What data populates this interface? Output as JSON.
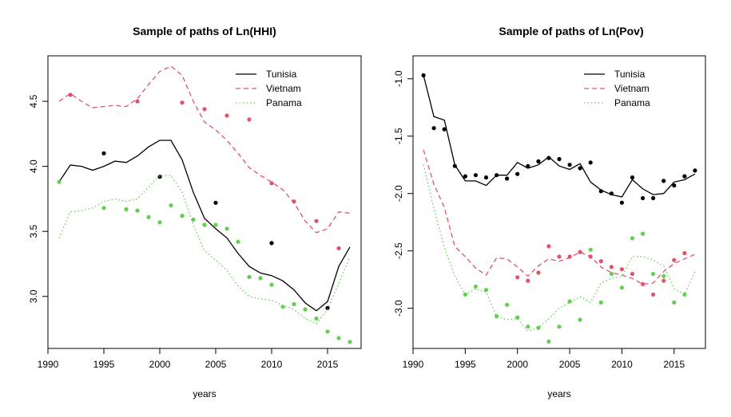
{
  "chart_data": [
    {
      "id": "hhi",
      "type": "line",
      "title": "Sample of paths of Ln(HHI)",
      "xlabel": "years",
      "ylabel": "",
      "xlim": [
        1990,
        2018
      ],
      "ylim": [
        2.6,
        4.85
      ],
      "xticks": [
        1990,
        1995,
        2000,
        2005,
        2010,
        2015
      ],
      "yticks": [
        3.0,
        3.5,
        4.0,
        4.5
      ],
      "ytick_labels": [
        "3.0",
        "3.5",
        "4.0",
        "4.5"
      ],
      "grid": false,
      "legend_position": "top-right",
      "series": [
        {
          "name": "Tunisia",
          "color": "#000000",
          "dash": "solid",
          "x": [
            1991,
            1992,
            1993,
            1994,
            1995,
            1996,
            1997,
            1998,
            1999,
            2000,
            2001,
            2002,
            2003,
            2004,
            2005,
            2006,
            2007,
            2008,
            2009,
            2010,
            2011,
            2012,
            2013,
            2014,
            2015,
            2016,
            2017
          ],
          "y": [
            3.88,
            4.01,
            4.0,
            3.97,
            4.0,
            4.04,
            4.03,
            4.08,
            4.15,
            4.2,
            4.2,
            4.05,
            3.8,
            3.6,
            3.52,
            3.45,
            3.33,
            3.23,
            3.18,
            3.16,
            3.12,
            3.05,
            2.95,
            2.89,
            2.96,
            3.23,
            3.38
          ],
          "points_x": [
            1995,
            2000,
            2005,
            2010,
            2015
          ],
          "points_y": [
            4.1,
            3.92,
            3.72,
            3.41,
            2.91
          ]
        },
        {
          "name": "Vietnam",
          "color": "#DF536B",
          "dash": "dashed",
          "x": [
            1991,
            1992,
            1993,
            1994,
            1995,
            1996,
            1997,
            1998,
            1999,
            2000,
            2001,
            2002,
            2003,
            2004,
            2005,
            2006,
            2007,
            2008,
            2009,
            2010,
            2011,
            2012,
            2013,
            2014,
            2015,
            2016,
            2017
          ],
          "y": [
            4.5,
            4.56,
            4.5,
            4.45,
            4.46,
            4.47,
            4.46,
            4.52,
            4.63,
            4.73,
            4.77,
            4.7,
            4.5,
            4.34,
            4.28,
            4.2,
            4.1,
            3.99,
            3.93,
            3.88,
            3.82,
            3.72,
            3.58,
            3.49,
            3.52,
            3.65,
            3.64
          ],
          "points_x": [
            1992,
            1998,
            2002,
            2004,
            2006,
            2008,
            2010,
            2012,
            2014,
            2016
          ],
          "points_y": [
            4.55,
            4.5,
            4.49,
            4.44,
            4.39,
            4.36,
            3.87,
            3.73,
            3.58,
            3.37
          ]
        },
        {
          "name": "Panama",
          "color": "#61D04F",
          "dash": "dotted",
          "x": [
            1991,
            1992,
            1993,
            1994,
            1995,
            1996,
            1997,
            1998,
            1999,
            2000,
            2001,
            2002,
            2003,
            2004,
            2005,
            2006,
            2007,
            2008,
            2009,
            2010,
            2011,
            2012,
            2013,
            2014,
            2015,
            2016,
            2017
          ],
          "y": [
            3.45,
            3.65,
            3.66,
            3.68,
            3.73,
            3.75,
            3.73,
            3.75,
            3.84,
            3.93,
            3.93,
            3.8,
            3.55,
            3.35,
            3.28,
            3.2,
            3.08,
            3.0,
            2.98,
            2.97,
            2.93,
            2.9,
            2.83,
            2.79,
            2.9,
            3.1,
            3.3
          ],
          "points_x": [
            1991,
            1995,
            1997,
            1998,
            1999,
            2000,
            2001,
            2002,
            2003,
            2004,
            2005,
            2006,
            2007,
            2008,
            2009,
            2010,
            2011,
            2012,
            2013,
            2014,
            2015,
            2016,
            2017
          ],
          "points_y": [
            3.88,
            3.68,
            3.67,
            3.66,
            3.61,
            3.57,
            3.7,
            3.62,
            3.59,
            3.55,
            3.55,
            3.52,
            3.42,
            3.15,
            3.14,
            3.09,
            2.92,
            2.94,
            2.9,
            2.83,
            2.73,
            2.68,
            2.65
          ]
        }
      ]
    },
    {
      "id": "pov",
      "type": "line",
      "title": "Sample of paths of Ln(Pov)",
      "xlabel": "years",
      "ylabel": "",
      "xlim": [
        1990,
        2018
      ],
      "ylim": [
        -3.35,
        -0.8
      ],
      "xticks": [
        1990,
        1995,
        2000,
        2005,
        2010,
        2015
      ],
      "yticks": [
        -3.0,
        -2.5,
        -2.0,
        -1.5,
        -1.0
      ],
      "ytick_labels": [
        "-3.0",
        "-2.5",
        "-2.0",
        "-1.5",
        "-1.0"
      ],
      "grid": false,
      "legend_position": "top-right",
      "series": [
        {
          "name": "Tunisia",
          "color": "#000000",
          "dash": "solid",
          "x": [
            1991,
            1992,
            1993,
            1994,
            1995,
            1996,
            1997,
            1998,
            1999,
            2000,
            2001,
            2002,
            2003,
            2004,
            2005,
            2006,
            2007,
            2008,
            2009,
            2010,
            2011,
            2012,
            2013,
            2014,
            2015,
            2016,
            2017
          ],
          "y": [
            -0.97,
            -1.33,
            -1.36,
            -1.75,
            -1.89,
            -1.89,
            -1.93,
            -1.84,
            -1.84,
            -1.73,
            -1.78,
            -1.75,
            -1.68,
            -1.76,
            -1.79,
            -1.74,
            -1.9,
            -1.97,
            -2.01,
            -2.03,
            -1.88,
            -1.96,
            -2.01,
            -2.0,
            -1.9,
            -1.88,
            -1.83
          ],
          "points_x": [
            1991,
            1992,
            1993,
            1994,
            1995,
            1996,
            1997,
            1998,
            1999,
            2000,
            2001,
            2002,
            2003,
            2004,
            2005,
            2006,
            2007,
            2008,
            2009,
            2010,
            2011,
            2012,
            2013,
            2014,
            2015,
            2016,
            2017
          ],
          "points_y": [
            -0.97,
            -1.43,
            -1.44,
            -1.76,
            -1.85,
            -1.84,
            -1.86,
            -1.84,
            -1.87,
            -1.83,
            -1.76,
            -1.72,
            -1.69,
            -1.7,
            -1.75,
            -1.78,
            -1.73,
            -1.98,
            -2.0,
            -2.08,
            -1.86,
            -2.04,
            -2.04,
            -1.89,
            -1.93,
            -1.85,
            -1.8
          ]
        },
        {
          "name": "Vietnam",
          "color": "#DF536B",
          "dash": "dashed",
          "x": [
            1991,
            1992,
            1993,
            1994,
            1995,
            1996,
            1997,
            1998,
            1999,
            2000,
            2001,
            2002,
            2003,
            2004,
            2005,
            2006,
            2007,
            2008,
            2009,
            2010,
            2011,
            2012,
            2013,
            2014,
            2015,
            2016,
            2017
          ],
          "y": [
            -1.62,
            -1.92,
            -2.12,
            -2.46,
            -2.55,
            -2.65,
            -2.71,
            -2.56,
            -2.57,
            -2.64,
            -2.72,
            -2.63,
            -2.57,
            -2.59,
            -2.56,
            -2.51,
            -2.55,
            -2.64,
            -2.69,
            -2.71,
            -2.74,
            -2.79,
            -2.78,
            -2.68,
            -2.61,
            -2.57,
            -2.53
          ],
          "points_x": [
            2000,
            2001,
            2002,
            2003,
            2004,
            2005,
            2006,
            2007,
            2008,
            2009,
            2010,
            2011,
            2012,
            2013,
            2014,
            2015,
            2016
          ],
          "points_y": [
            -2.73,
            -2.76,
            -2.69,
            -2.46,
            -2.55,
            -2.55,
            -2.51,
            -2.55,
            -2.59,
            -2.64,
            -2.66,
            -2.7,
            -2.79,
            -2.88,
            -2.76,
            -2.58,
            -2.52
          ]
        },
        {
          "name": "Panama",
          "color": "#61D04F",
          "dash": "dotted",
          "x": [
            1991,
            1992,
            1993,
            1994,
            1995,
            1996,
            1997,
            1998,
            1999,
            2000,
            2001,
            2002,
            2003,
            2004,
            2005,
            2006,
            2007,
            2008,
            2009,
            2010,
            2011,
            2012,
            2013,
            2014,
            2015,
            2016,
            2017
          ],
          "y": [
            -1.75,
            -2.13,
            -2.47,
            -2.72,
            -2.88,
            -2.83,
            -2.86,
            -3.07,
            -3.1,
            -3.09,
            -3.2,
            -3.17,
            -3.09,
            -3.0,
            -2.95,
            -2.9,
            -2.95,
            -2.78,
            -2.74,
            -2.72,
            -2.55,
            -2.55,
            -2.58,
            -2.63,
            -2.83,
            -2.88,
            -2.68
          ],
          "points_x": [
            1995,
            1996,
            1997,
            1998,
            1999,
            2000,
            2001,
            2002,
            2003,
            2004,
            2005,
            2006,
            2007,
            2008,
            2009,
            2010,
            2011,
            2012,
            2013,
            2014,
            2015,
            2016
          ],
          "points_y": [
            -2.88,
            -2.81,
            -2.84,
            -3.07,
            -2.97,
            -3.08,
            -3.16,
            -3.17,
            -3.29,
            -3.16,
            -2.94,
            -3.1,
            -2.49,
            -2.95,
            -2.7,
            -2.82,
            -2.39,
            -2.35,
            -2.7,
            -2.72,
            -2.95,
            -2.88
          ]
        }
      ]
    }
  ]
}
